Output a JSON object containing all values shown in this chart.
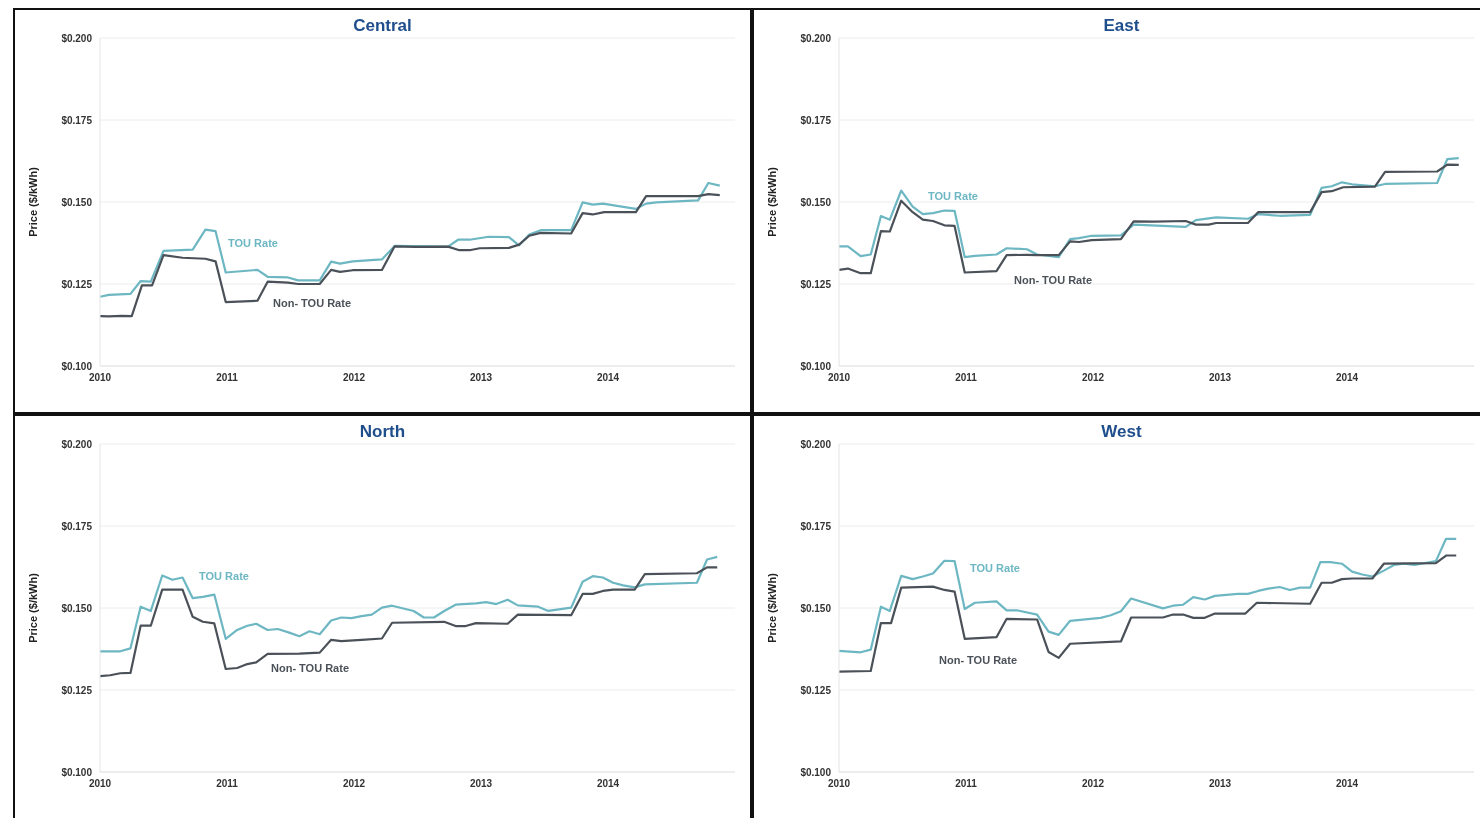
{
  "chart_data": [
    {
      "type": "line",
      "title": "Central",
      "ylabel": "Price ($/kWh)",
      "xlim": [
        2010,
        2015
      ],
      "xticks": [
        2010,
        2011,
        2012,
        2013,
        2014
      ],
      "ylim": [
        0.1,
        0.2
      ],
      "yticks": [
        {
          "value": 0.1,
          "label": "$0.100"
        },
        {
          "value": 0.125,
          "label": "$0.125"
        },
        {
          "value": 0.15,
          "label": "$0.150"
        },
        {
          "value": 0.175,
          "label": "$0.175"
        },
        {
          "value": 0.2,
          "label": "$0.200"
        }
      ],
      "grid": "y",
      "legend": false,
      "marker": "none",
      "line_style": "solid",
      "series": [
        {
          "name": "TOU Rate",
          "color": "#6db7c3",
          "x": [
            2010.0,
            2010.07,
            2010.24,
            2010.32,
            2010.4,
            2010.5,
            2010.73,
            2010.83,
            2010.91,
            2010.99,
            2011.24,
            2011.32,
            2011.48,
            2011.56,
            2011.73,
            2011.82,
            2011.89,
            2011.99,
            2012.22,
            2012.32,
            2012.74,
            2012.82,
            2012.91,
            2013.06,
            2013.22,
            2013.3,
            2013.38,
            2013.47,
            2013.71,
            2013.8,
            2013.88,
            2013.96,
            2014.22,
            2014.3,
            2014.38,
            2014.71,
            2014.79,
            2014.88
          ],
          "values": [
            0.1211,
            0.1217,
            0.122,
            0.1259,
            0.1257,
            0.1351,
            0.1355,
            0.1416,
            0.1411,
            0.1285,
            0.1293,
            0.1272,
            0.127,
            0.1261,
            0.1261,
            0.1318,
            0.1312,
            0.1319,
            0.1325,
            0.1366,
            0.1364,
            0.1385,
            0.1385,
            0.1394,
            0.1393,
            0.1368,
            0.1401,
            0.1414,
            0.1414,
            0.1499,
            0.1492,
            0.1495,
            0.1479,
            0.1495,
            0.1499,
            0.1505,
            0.1558,
            0.155
          ]
        },
        {
          "name": "Non- TOU Rate",
          "color": "#4b5158",
          "x": [
            2010.0,
            2010.07,
            2010.17,
            2010.25,
            2010.33,
            2010.41,
            2010.5,
            2010.65,
            2010.83,
            2010.91,
            2010.99,
            2011.24,
            2011.32,
            2011.48,
            2011.56,
            2011.73,
            2011.82,
            2011.89,
            2011.99,
            2012.22,
            2012.32,
            2012.48,
            2012.74,
            2012.83,
            2012.91,
            2012.99,
            2013.22,
            2013.3,
            2013.38,
            2013.47,
            2013.71,
            2013.8,
            2013.88,
            2013.97,
            2014.22,
            2014.3,
            2014.71,
            2014.79,
            2014.88
          ],
          "values": [
            0.1152,
            0.1151,
            0.1153,
            0.1152,
            0.1246,
            0.1246,
            0.1338,
            0.133,
            0.1327,
            0.1319,
            0.1195,
            0.1199,
            0.1257,
            0.1254,
            0.125,
            0.125,
            0.1293,
            0.1287,
            0.1292,
            0.1293,
            0.1365,
            0.1363,
            0.1364,
            0.1353,
            0.1353,
            0.1359,
            0.136,
            0.137,
            0.1397,
            0.1406,
            0.1404,
            0.1466,
            0.1462,
            0.1469,
            0.1469,
            0.1518,
            0.1518,
            0.1524,
            0.1521
          ]
        }
      ]
    },
    {
      "type": "line",
      "title": "East",
      "ylabel": "Price ($/kWh)",
      "xlim": [
        2010,
        2015
      ],
      "xticks": [
        2010,
        2011,
        2012,
        2013,
        2014
      ],
      "ylim": [
        0.1,
        0.2
      ],
      "yticks": [
        {
          "value": 0.1,
          "label": "$0.100"
        },
        {
          "value": 0.125,
          "label": "$0.125"
        },
        {
          "value": 0.15,
          "label": "$0.150"
        },
        {
          "value": 0.175,
          "label": "$0.175"
        },
        {
          "value": 0.2,
          "label": "$0.200"
        }
      ],
      "grid": "y",
      "legend": false,
      "marker": "none",
      "line_style": "solid",
      "series": [
        {
          "name": "TOU Rate",
          "color": "#6db7c3",
          "x": [
            2010.0,
            2010.07,
            2010.17,
            2010.25,
            2010.33,
            2010.4,
            2010.49,
            2010.58,
            2010.66,
            2010.74,
            2010.83,
            2010.91,
            2010.99,
            2011.07,
            2011.24,
            2011.32,
            2011.48,
            2011.56,
            2011.73,
            2011.82,
            2011.89,
            2011.99,
            2012.22,
            2012.32,
            2012.73,
            2012.81,
            2012.97,
            2013.22,
            2013.3,
            2013.47,
            2013.71,
            2013.8,
            2013.88,
            2013.96,
            2014.04,
            2014.22,
            2014.3,
            2014.71,
            2014.79,
            2014.88
          ],
          "values": [
            0.1365,
            0.1365,
            0.1335,
            0.134,
            0.1457,
            0.1446,
            0.1535,
            0.1486,
            0.1463,
            0.1466,
            0.1474,
            0.1473,
            0.1332,
            0.1336,
            0.134,
            0.1359,
            0.1356,
            0.134,
            0.1332,
            0.1387,
            0.139,
            0.1397,
            0.1398,
            0.1431,
            0.1424,
            0.1445,
            0.1453,
            0.1449,
            0.1463,
            0.1458,
            0.1461,
            0.1543,
            0.1548,
            0.156,
            0.1554,
            0.1548,
            0.1555,
            0.1558,
            0.1631,
            0.1634
          ]
        },
        {
          "name": "Non- TOU Rate",
          "color": "#4b5158",
          "x": [
            2010.0,
            2010.07,
            2010.17,
            2010.25,
            2010.33,
            2010.4,
            2010.49,
            2010.58,
            2010.66,
            2010.74,
            2010.83,
            2010.91,
            2010.99,
            2011.24,
            2011.32,
            2011.48,
            2011.56,
            2011.73,
            2011.82,
            2011.89,
            2011.99,
            2012.22,
            2012.32,
            2012.48,
            2012.73,
            2012.81,
            2012.91,
            2012.97,
            2013.22,
            2013.3,
            2013.71,
            2013.8,
            2013.88,
            2013.97,
            2014.22,
            2014.3,
            2014.71,
            2014.79,
            2014.88
          ],
          "values": [
            0.1293,
            0.1297,
            0.1283,
            0.1283,
            0.1411,
            0.141,
            0.1504,
            0.1469,
            0.1446,
            0.1442,
            0.1429,
            0.1427,
            0.1285,
            0.1289,
            0.1338,
            0.1339,
            0.1338,
            0.1338,
            0.138,
            0.1378,
            0.1384,
            0.1387,
            0.1441,
            0.144,
            0.1442,
            0.1431,
            0.1431,
            0.1436,
            0.1436,
            0.1469,
            0.1469,
            0.153,
            0.1533,
            0.1545,
            0.1547,
            0.1592,
            0.1593,
            0.1614,
            0.1613
          ]
        }
      ]
    },
    {
      "type": "line",
      "title": "North",
      "ylabel": "Price ($/kWh)",
      "xlim": [
        2010,
        2015
      ],
      "xticks": [
        2010,
        2011,
        2012,
        2013,
        2014
      ],
      "ylim": [
        0.1,
        0.2
      ],
      "yticks": [
        {
          "value": 0.1,
          "label": "$0.100"
        },
        {
          "value": 0.125,
          "label": "$0.125"
        },
        {
          "value": 0.15,
          "label": "$0.150"
        },
        {
          "value": 0.175,
          "label": "$0.175"
        },
        {
          "value": 0.2,
          "label": "$0.200"
        }
      ],
      "grid": "y",
      "legend": false,
      "marker": "none",
      "line_style": "solid",
      "series": [
        {
          "name": "TOU Rate",
          "color": "#6db7c3",
          "x": [
            2010.0,
            2010.16,
            2010.24,
            2010.32,
            2010.4,
            2010.49,
            2010.57,
            2010.65,
            2010.73,
            2010.81,
            2010.9,
            2010.99,
            2011.08,
            2011.16,
            2011.23,
            2011.32,
            2011.4,
            2011.49,
            2011.57,
            2011.65,
            2011.73,
            2011.82,
            2011.9,
            2011.98,
            2012.06,
            2012.14,
            2012.22,
            2012.3,
            2012.47,
            2012.55,
            2012.63,
            2012.71,
            2012.8,
            2012.96,
            2013.04,
            2013.12,
            2013.21,
            2013.29,
            2013.45,
            2013.53,
            2013.71,
            2013.8,
            2013.88,
            2013.96,
            2014.04,
            2014.12,
            2014.21,
            2014.29,
            2014.7,
            2014.78,
            2014.86
          ],
          "values": [
            0.1368,
            0.1368,
            0.1377,
            0.1504,
            0.1491,
            0.1599,
            0.1586,
            0.1593,
            0.153,
            0.1534,
            0.1541,
            0.1406,
            0.1433,
            0.1446,
            0.1452,
            0.1433,
            0.1436,
            0.1425,
            0.1414,
            0.1429,
            0.142,
            0.1462,
            0.1471,
            0.1469,
            0.1475,
            0.148,
            0.1501,
            0.1507,
            0.1491,
            0.1471,
            0.1471,
            0.1491,
            0.151,
            0.1514,
            0.1518,
            0.1512,
            0.1525,
            0.1508,
            0.1504,
            0.1491,
            0.1501,
            0.158,
            0.1597,
            0.1593,
            0.1577,
            0.1569,
            0.1563,
            0.1572,
            0.1577,
            0.1648,
            0.1656
          ]
        },
        {
          "name": "Non- TOU Rate",
          "color": "#4b5158",
          "x": [
            2010.0,
            2010.08,
            2010.16,
            2010.24,
            2010.32,
            2010.4,
            2010.49,
            2010.65,
            2010.73,
            2010.81,
            2010.9,
            2010.99,
            2011.08,
            2011.16,
            2011.23,
            2011.32,
            2011.57,
            2011.73,
            2011.82,
            2011.9,
            2012.06,
            2012.22,
            2012.3,
            2012.71,
            2012.8,
            2012.88,
            2012.96,
            2013.21,
            2013.29,
            2013.71,
            2013.8,
            2013.88,
            2013.96,
            2014.04,
            2014.21,
            2014.29,
            2014.7,
            2014.78,
            2014.86
          ],
          "values": [
            0.1292,
            0.1295,
            0.1301,
            0.1302,
            0.1446,
            0.1446,
            0.1556,
            0.1556,
            0.1473,
            0.1458,
            0.1453,
            0.1314,
            0.1317,
            0.1329,
            0.1334,
            0.136,
            0.1361,
            0.1364,
            0.1403,
            0.1399,
            0.1403,
            0.1407,
            0.1455,
            0.1458,
            0.1445,
            0.1445,
            0.1454,
            0.1452,
            0.148,
            0.1478,
            0.1543,
            0.1543,
            0.1552,
            0.1556,
            0.1556,
            0.1603,
            0.1606,
            0.1624,
            0.1624
          ]
        }
      ]
    },
    {
      "type": "line",
      "title": "West",
      "ylabel": "Price ($/kWh)",
      "xlim": [
        2010,
        2015
      ],
      "xticks": [
        2010,
        2011,
        2012,
        2013,
        2014
      ],
      "ylim": [
        0.1,
        0.2
      ],
      "yticks": [
        {
          "value": 0.1,
          "label": "$0.100"
        },
        {
          "value": 0.125,
          "label": "$0.125"
        },
        {
          "value": 0.15,
          "label": "$0.150"
        },
        {
          "value": 0.175,
          "label": "$0.175"
        },
        {
          "value": 0.2,
          "label": "$0.200"
        }
      ],
      "grid": "y",
      "legend": false,
      "marker": "none",
      "line_style": "solid",
      "series": [
        {
          "name": "TOU Rate",
          "color": "#6db7c3",
          "x": [
            2010.0,
            2010.17,
            2010.25,
            2010.33,
            2010.4,
            2010.49,
            2010.58,
            2010.66,
            2010.74,
            2010.83,
            2010.91,
            2010.99,
            2011.07,
            2011.24,
            2011.32,
            2011.4,
            2011.56,
            2011.65,
            2011.73,
            2011.82,
            2012.06,
            2012.14,
            2012.22,
            2012.3,
            2012.55,
            2012.63,
            2012.71,
            2012.79,
            2012.88,
            2012.96,
            2013.14,
            2013.22,
            2013.3,
            2013.38,
            2013.47,
            2013.55,
            2013.63,
            2013.71,
            2013.79,
            2013.87,
            2013.96,
            2014.04,
            2014.12,
            2014.2,
            2014.29,
            2014.37,
            2014.45,
            2014.53,
            2014.7,
            2014.78,
            2014.86
          ],
          "values": [
            0.1369,
            0.1365,
            0.1373,
            0.1504,
            0.1491,
            0.1598,
            0.1588,
            0.1596,
            0.1605,
            0.1644,
            0.1643,
            0.1497,
            0.1516,
            0.152,
            0.1493,
            0.1493,
            0.148,
            0.1428,
            0.1418,
            0.1461,
            0.147,
            0.1478,
            0.149,
            0.1529,
            0.1499,
            0.1507,
            0.151,
            0.1533,
            0.1526,
            0.1537,
            0.1543,
            0.1543,
            0.1552,
            0.1559,
            0.1564,
            0.1555,
            0.1562,
            0.1562,
            0.164,
            0.164,
            0.1635,
            0.1611,
            0.1602,
            0.1596,
            0.1614,
            0.1631,
            0.1635,
            0.1631,
            0.1643,
            0.1711,
            0.1711
          ]
        },
        {
          "name": "Non- TOU Rate",
          "color": "#4b5158",
          "x": [
            2010.0,
            2010.25,
            2010.33,
            2010.41,
            2010.49,
            2010.74,
            2010.83,
            2010.91,
            2010.99,
            2011.24,
            2011.32,
            2011.56,
            2011.65,
            2011.73,
            2011.82,
            2012.22,
            2012.3,
            2012.55,
            2012.63,
            2012.71,
            2012.79,
            2012.88,
            2012.96,
            2013.2,
            2013.29,
            2013.71,
            2013.8,
            2013.88,
            2013.96,
            2014.04,
            2014.2,
            2014.29,
            2014.7,
            2014.78,
            2014.86
          ],
          "values": [
            0.1306,
            0.1308,
            0.1454,
            0.1454,
            0.1562,
            0.1565,
            0.1555,
            0.155,
            0.1406,
            0.1411,
            0.1467,
            0.1465,
            0.1366,
            0.1348,
            0.1391,
            0.1398,
            0.1471,
            0.1471,
            0.148,
            0.148,
            0.147,
            0.147,
            0.1483,
            0.1483,
            0.1516,
            0.1513,
            0.1577,
            0.1577,
            0.1588,
            0.159,
            0.159,
            0.1635,
            0.1637,
            0.166,
            0.166
          ]
        }
      ]
    }
  ]
}
